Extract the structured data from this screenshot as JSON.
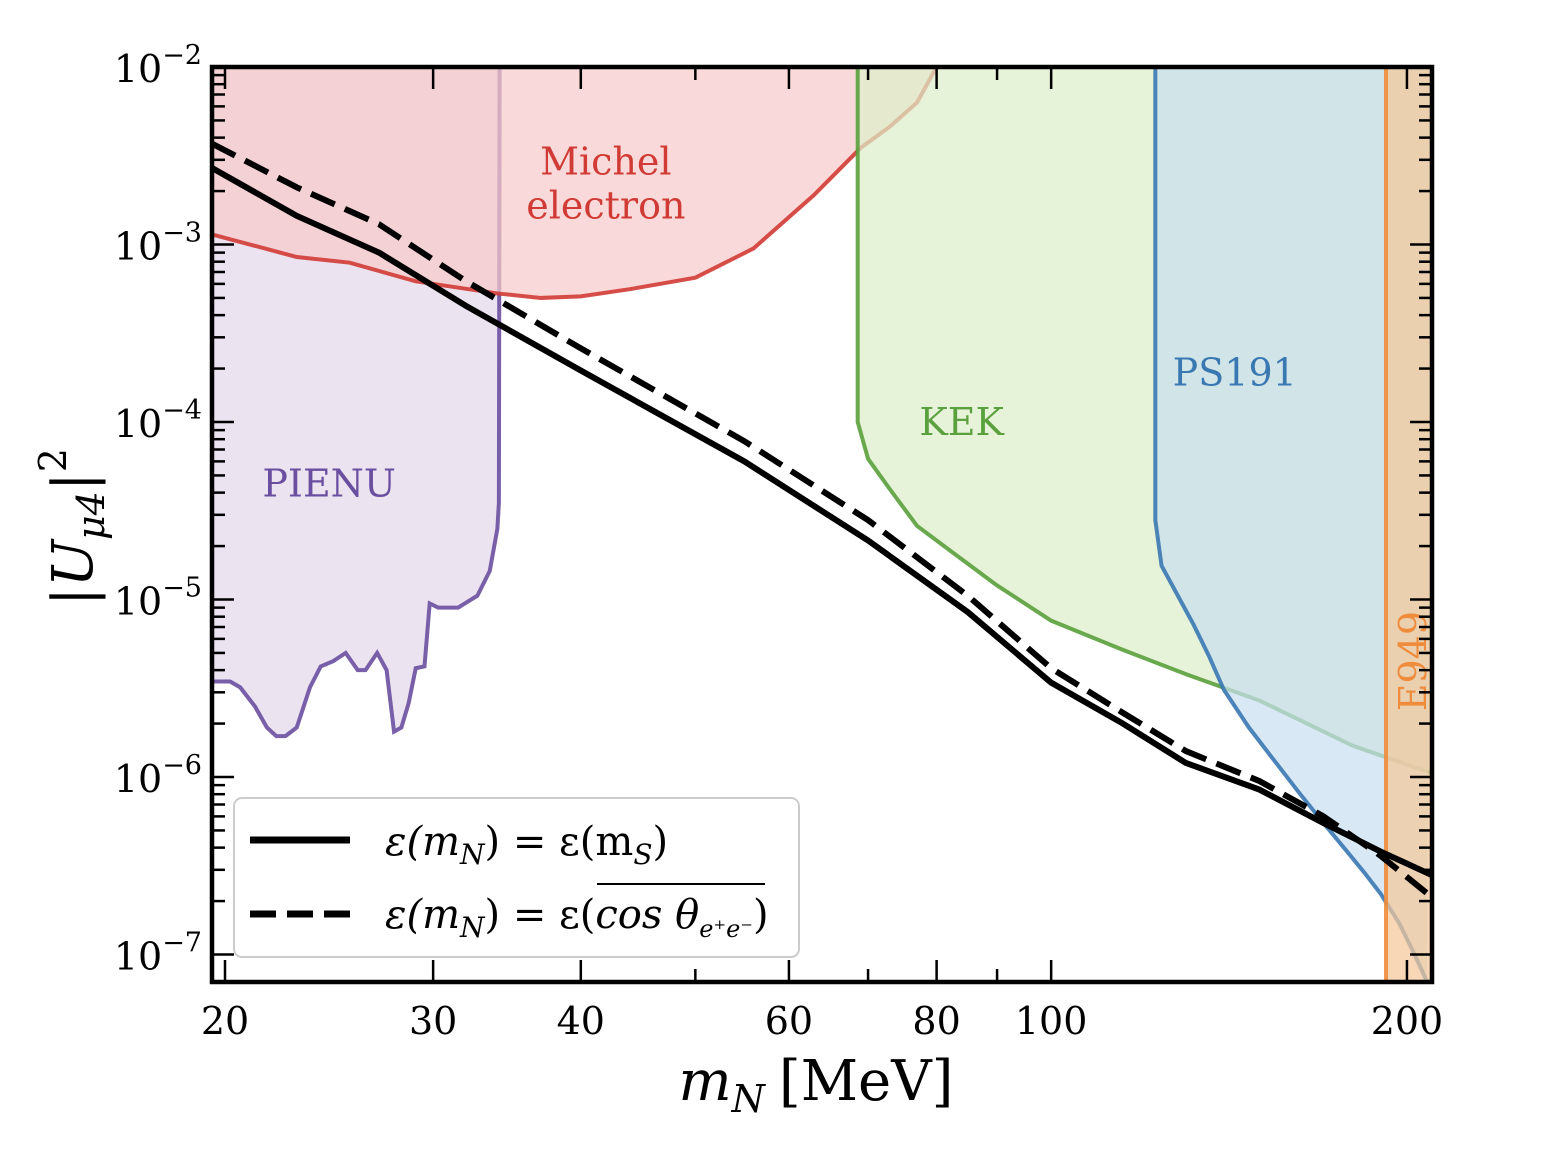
{
  "chart_data": {
    "type": "line",
    "title": "",
    "xlabel_main": "m",
    "xlabel_sub": "N",
    "xlabel_unit": "[MeV]",
    "ylabel_main": "|U",
    "ylabel_sub": "μ4",
    "ylabel_close": "|",
    "ylabel_sup": "2",
    "xscale": "log",
    "yscale": "log",
    "xlim": [
      19.5,
      210
    ],
    "ylim": [
      7e-08,
      0.01
    ],
    "grid": false,
    "legend_position": "lower-left",
    "x_ticks": [
      {
        "value": 20,
        "label": "20"
      },
      {
        "value": 30,
        "label": "30"
      },
      {
        "value": 40,
        "label": "40"
      },
      {
        "value": 60,
        "label": "60"
      },
      {
        "value": 80,
        "label": "80"
      },
      {
        "value": 100,
        "label": "100"
      },
      {
        "value": 200,
        "label": "200"
      }
    ],
    "y_ticks": [
      {
        "value": 0.01,
        "base": "10",
        "exp": "−2"
      },
      {
        "value": 0.001,
        "base": "10",
        "exp": "−3"
      },
      {
        "value": 0.0001,
        "base": "10",
        "exp": "−4"
      },
      {
        "value": 1e-05,
        "base": "10",
        "exp": "−5"
      },
      {
        "value": 1e-06,
        "base": "10",
        "exp": "−6"
      },
      {
        "value": 1e-07,
        "base": "10",
        "exp": "−7"
      }
    ],
    "regions": [
      {
        "name": "PIENU",
        "label_lines": [
          "PIENU"
        ],
        "color": "#6a4fa0",
        "fill": "#e3d8ea",
        "label_pos": {
          "x": 24.5,
          "y": 4.5e-05
        },
        "boundary": [
          [
            19.5,
            3.45e-06
          ],
          [
            20.2,
            3.45e-06
          ],
          [
            20.6,
            3.2e-06
          ],
          [
            21.2,
            2.5e-06
          ],
          [
            21.7,
            1.9e-06
          ],
          [
            22.1,
            1.7e-06
          ],
          [
            22.5,
            1.7e-06
          ],
          [
            23.0,
            1.9e-06
          ],
          [
            23.6,
            3.2e-06
          ],
          [
            24.1,
            4.2e-06
          ],
          [
            24.7,
            4.5e-06
          ],
          [
            25.3,
            5e-06
          ],
          [
            25.9,
            4e-06
          ],
          [
            26.3,
            4e-06
          ],
          [
            26.9,
            5e-06
          ],
          [
            27.4,
            4e-06
          ],
          [
            27.8,
            1.8e-06
          ],
          [
            28.2,
            1.9e-06
          ],
          [
            28.6,
            2.6e-06
          ],
          [
            29.0,
            4.1e-06
          ],
          [
            29.5,
            4.2e-06
          ],
          [
            29.8,
            9.5e-06
          ],
          [
            30.3,
            9e-06
          ],
          [
            31.5,
            9e-06
          ],
          [
            32.7,
            1.05e-05
          ],
          [
            33.5,
            1.45e-05
          ],
          [
            34.0,
            2.5e-05
          ],
          [
            34.1,
            3.5e-05
          ],
          [
            34.15,
            0.01
          ]
        ]
      },
      {
        "name": "Michel electron",
        "label_lines": [
          "Michel",
          "electron"
        ],
        "color": "#d13b35",
        "fill": "#f7cbcb",
        "label_pos": {
          "x": 42,
          "y": 0.0022
        },
        "boundary": [
          [
            19.5,
            0.00114
          ],
          [
            23.0,
            0.00085
          ],
          [
            25.5,
            0.00079
          ],
          [
            29.0,
            0.00062
          ],
          [
            34.0,
            0.00053
          ],
          [
            37.0,
            0.0005
          ],
          [
            40.0,
            0.00051
          ],
          [
            44.0,
            0.00056
          ],
          [
            50.0,
            0.00065
          ],
          [
            56.0,
            0.00095
          ],
          [
            63.0,
            0.0019
          ],
          [
            69.0,
            0.0035
          ],
          [
            73.0,
            0.0046
          ],
          [
            77.0,
            0.0063
          ],
          [
            80.0,
            0.01
          ]
        ]
      },
      {
        "name": "KEK",
        "label_lines": [
          "KEK"
        ],
        "color": "#5aa03c",
        "fill": "#dcefc9",
        "label_pos": {
          "x": 84,
          "y": 0.0001
        },
        "boundary": [
          [
            68.6,
            0.01
          ],
          [
            68.6,
            0.0001
          ],
          [
            70.0,
            6.2e-05
          ],
          [
            73.0,
            4.2e-05
          ],
          [
            77.0,
            2.6e-05
          ],
          [
            82.0,
            1.9e-05
          ],
          [
            90.0,
            1.2e-05
          ],
          [
            100.0,
            7.6e-06
          ],
          [
            115.0,
            5.2e-06
          ],
          [
            130.0,
            3.8e-06
          ],
          [
            150.0,
            2.7e-06
          ],
          [
            180.0,
            1.5e-06
          ],
          [
            210.0,
            1.05e-06
          ]
        ]
      },
      {
        "name": "PS191",
        "label_lines": [
          "PS191"
        ],
        "color": "#3a78b2",
        "fill": "#c9dff0",
        "label_pos": {
          "x": 143,
          "y": 0.00019
        },
        "boundary": [
          [
            122.5,
            0.01
          ],
          [
            122.5,
            2.8e-05
          ],
          [
            124.0,
            1.55e-05
          ],
          [
            128.0,
            1.05e-05
          ],
          [
            132.0,
            7.2e-06
          ],
          [
            136.0,
            4.8e-06
          ],
          [
            140.0,
            3.1e-06
          ],
          [
            147.0,
            1.9e-06
          ],
          [
            155.0,
            1.2e-06
          ],
          [
            162.0,
            8.2e-07
          ],
          [
            170.0,
            5.5e-07
          ],
          [
            178.0,
            3.8e-07
          ],
          [
            184.0,
            2.9e-07
          ],
          [
            190.0,
            2.2e-07
          ],
          [
            197.0,
            1.5e-07
          ],
          [
            203.0,
            1e-07
          ],
          [
            208.0,
            7e-08
          ]
        ]
      },
      {
        "name": "E949",
        "label_lines": [
          "E949"
        ],
        "color": "#ef8c3c",
        "fill": "#f5c89a",
        "label_pos": {
          "x": 202,
          "y": 4.5e-06
        },
        "boundary": [
          [
            192.0,
            0.01
          ],
          [
            192.0,
            7e-08
          ]
        ]
      }
    ],
    "series": [
      {
        "name": "ε(m_N) = ε(m_S)",
        "label_main": "ε(m",
        "label_sub": "N",
        "label_mid": ") = ε(m",
        "label_sub2": "S",
        "label_end": ")",
        "color": "#000000",
        "dash": "solid",
        "x": [
          19.5,
          23,
          27,
          32,
          40,
          55,
          70,
          85,
          100,
          115,
          130,
          150,
          170,
          190,
          210
        ],
        "y": [
          0.0027,
          0.00145,
          0.0009,
          0.00045,
          0.000195,
          6e-05,
          2.15e-05,
          8.5e-06,
          3.4e-06,
          2e-06,
          1.2e-06,
          8.5e-07,
          5.5e-07,
          3.8e-07,
          2.8e-07
        ]
      },
      {
        "name": "ε(m_N) = ε(cos θ_{e+e−})",
        "label_main": "ε(m",
        "label_sub": "N",
        "label_mid": ") = ε(",
        "label_over": "cos θ",
        "label_sub2": "e⁺e⁻",
        "label_end": ")",
        "color": "#000000",
        "dash": "dashed",
        "x": [
          19.5,
          23,
          27,
          32,
          40,
          55,
          70,
          85,
          100,
          115,
          130,
          150,
          170,
          190,
          210
        ],
        "y": [
          0.0037,
          0.0021,
          0.0013,
          0.00062,
          0.00026,
          7.8e-05,
          2.8e-05,
          1.05e-05,
          4.1e-06,
          2.3e-06,
          1.4e-06,
          9.5e-07,
          6e-07,
          3.6e-07,
          2.1e-07
        ]
      }
    ]
  }
}
